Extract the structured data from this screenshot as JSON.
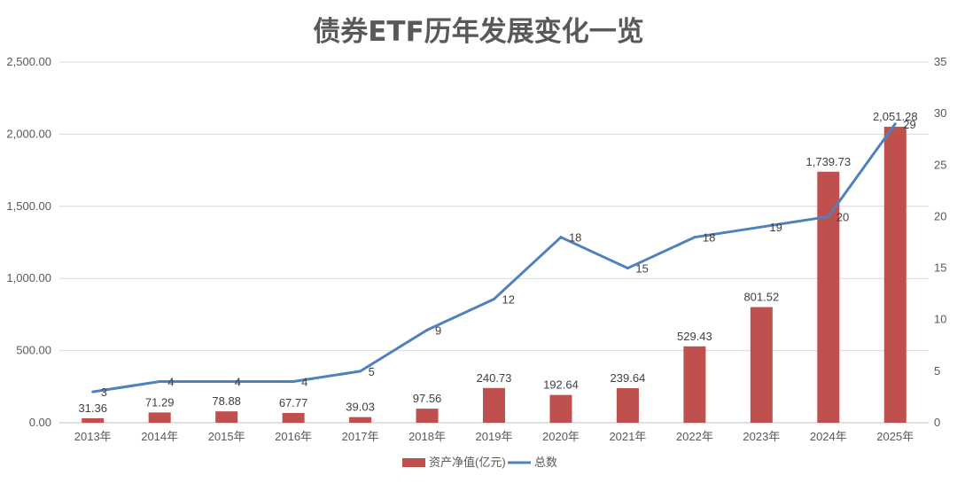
{
  "chart_data": {
    "type": "bar",
    "title": "债券ETF历年发展变化一览",
    "categories": [
      "2013年",
      "2014年",
      "2015年",
      "2016年",
      "2017年",
      "2018年",
      "2019年",
      "2020年",
      "2021年",
      "2022年",
      "2023年",
      "2024年",
      "2025年"
    ],
    "series": [
      {
        "name": "资产净值(亿元)",
        "type": "bar",
        "axis": "left",
        "color": "#c0504d",
        "values": [
          31.36,
          71.29,
          78.88,
          67.77,
          39.03,
          97.56,
          240.73,
          192.64,
          239.64,
          529.43,
          801.52,
          1739.73,
          2051.28
        ],
        "labels": [
          "31.36",
          "71.29",
          "78.88",
          "67.77",
          "39.03",
          "97.56",
          "240.73",
          "192.64",
          "239.64",
          "529.43",
          "801.52",
          "1,739.73",
          "2,051.28"
        ]
      },
      {
        "name": "总数",
        "type": "line",
        "axis": "right",
        "color": "#4f81bd",
        "values": [
          3,
          4,
          4,
          4,
          5,
          9,
          12,
          18,
          15,
          18,
          19,
          20,
          29
        ],
        "labels": [
          "3",
          "4",
          "4",
          "4",
          "5",
          "9",
          "12",
          "18",
          "15",
          "18",
          "19",
          "20",
          "29"
        ]
      }
    ],
    "y_left": {
      "ylim": [
        0,
        2500
      ],
      "ticks": [
        0,
        500,
        1000,
        1500,
        2000,
        2500
      ],
      "tick_labels": [
        "0.00",
        "500.00",
        "1,000.00",
        "1,500.00",
        "2,000.00",
        "2,500.00"
      ]
    },
    "y_right": {
      "ylim": [
        0,
        35
      ],
      "ticks": [
        0,
        5,
        10,
        15,
        20,
        25,
        30,
        35
      ],
      "tick_labels": [
        "0",
        "5",
        "10",
        "15",
        "20",
        "25",
        "30",
        "35"
      ]
    },
    "grid": true,
    "legend_position": "bottom-center"
  }
}
